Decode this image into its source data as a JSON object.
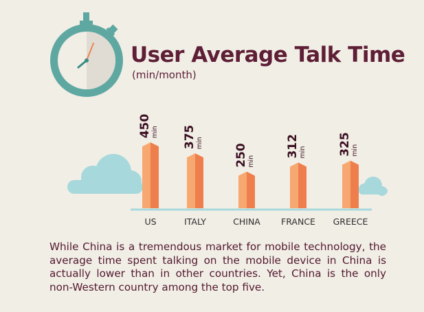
{
  "header": {
    "title": "User Average Talk Time",
    "subtitle": "(min/month)",
    "icon": "stopwatch-icon"
  },
  "colors": {
    "background": "#f1eee6",
    "title": "#5e1f36",
    "bar_light": "#f7a870",
    "bar_dark": "#ee7f4c",
    "bar_top": "#f2935c",
    "axis": "#a6d8dc",
    "cloud": "#a6d8dc",
    "stopwatch_ring": "#5fa8a2",
    "label_dark": "#3b0f22"
  },
  "chart_data": {
    "type": "bar",
    "title": "User Average Talk Time",
    "subtitle": "(min/month)",
    "categories": [
      "US",
      "ITALY",
      "CHINA",
      "FRANCE",
      "GREECE"
    ],
    "values": [
      450,
      375,
      250,
      312,
      325
    ],
    "unit_label": "min",
    "xlabel": "",
    "ylabel": "",
    "grid": false
  },
  "description": "While China is a tremendous market for mobile technology, the average time spent talking on the mobile device in China is actually lower than in other countries. Yet, China is the only non-Western country among the top five."
}
